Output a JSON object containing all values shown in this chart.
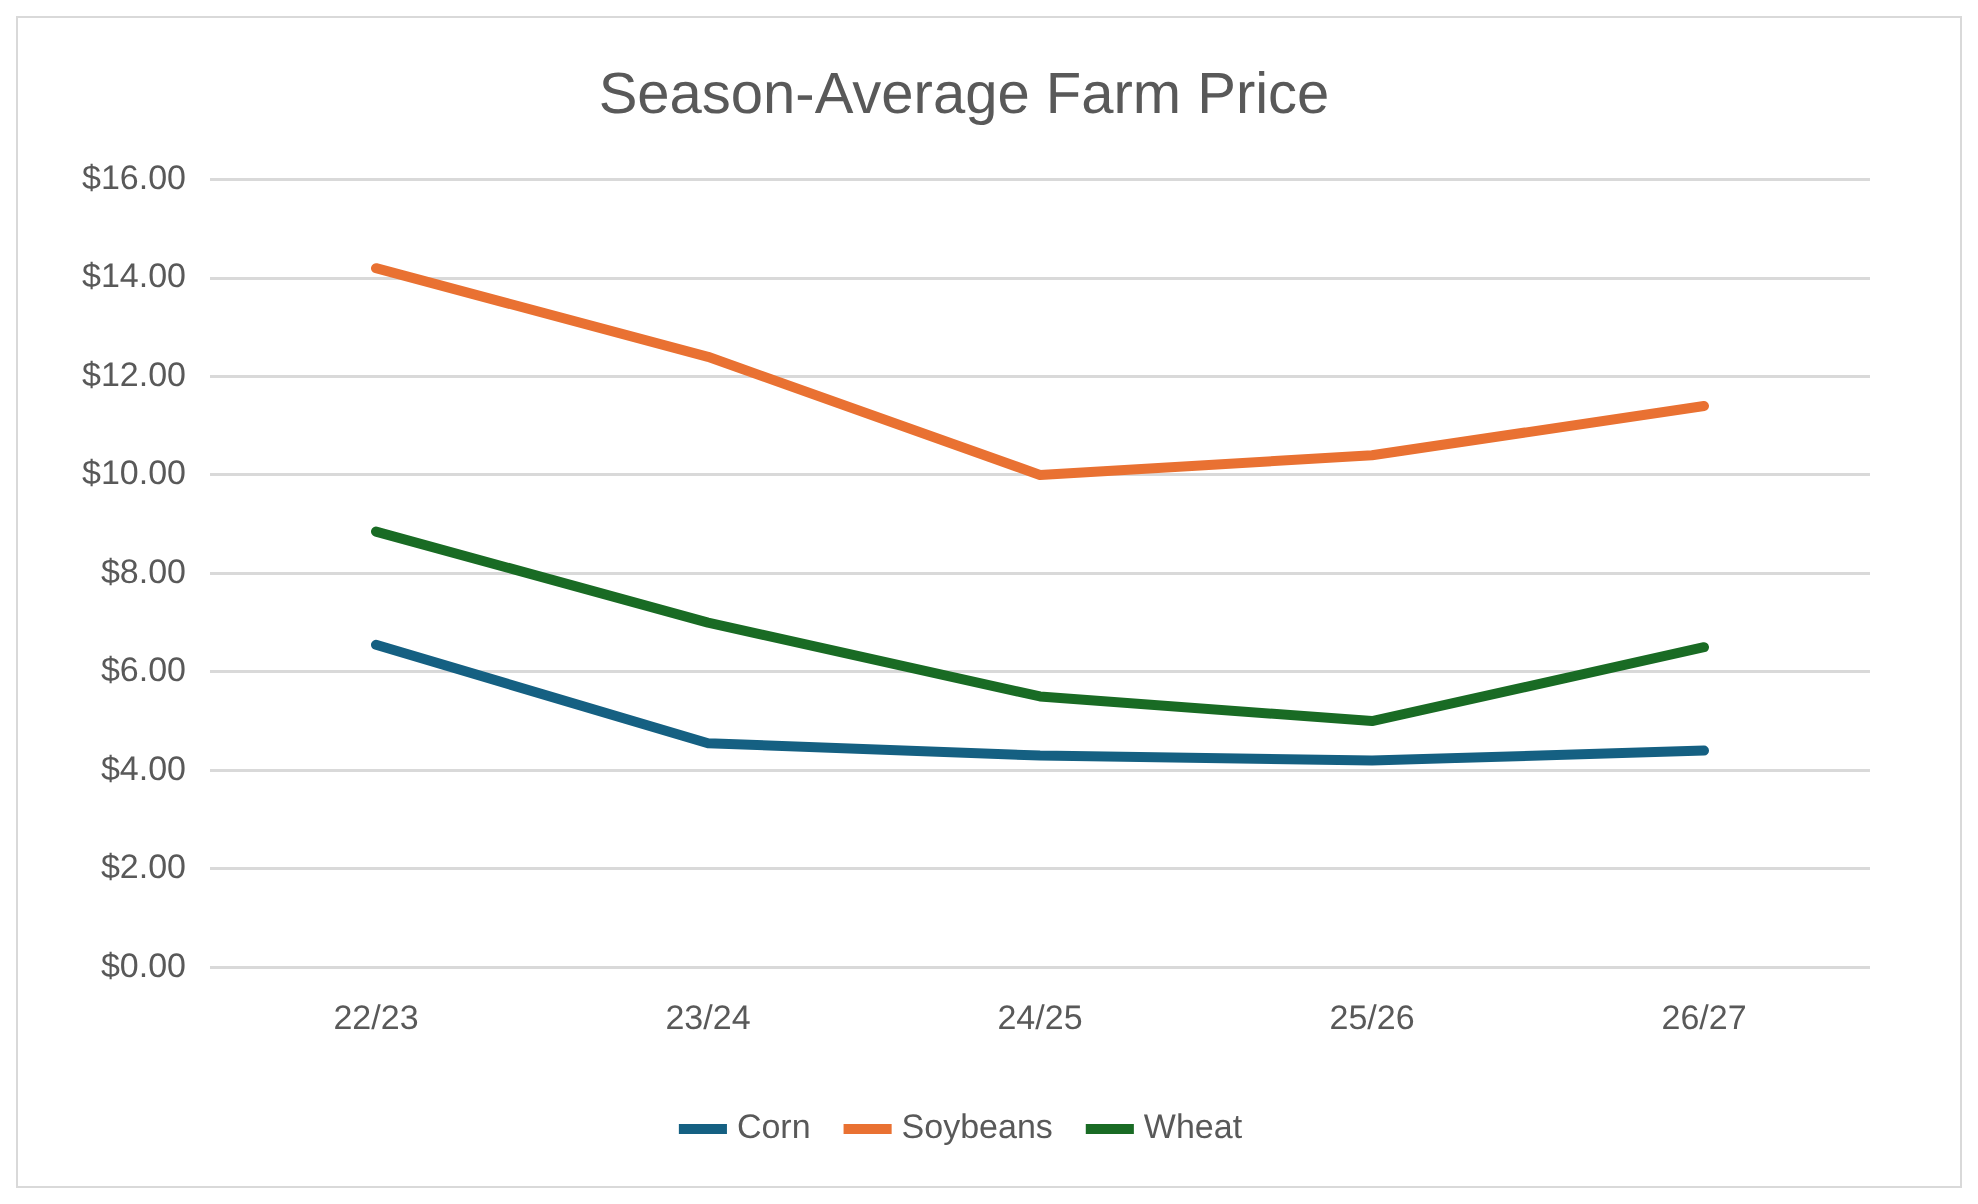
{
  "chart_data": {
    "type": "line",
    "title": "Season-Average Farm Price",
    "categories": [
      "22/23",
      "23/24",
      "24/25",
      "25/26",
      "26/27"
    ],
    "series": [
      {
        "name": "Corn",
        "color": "#156082",
        "values": [
          6.55,
          4.55,
          4.3,
          4.2,
          4.4
        ]
      },
      {
        "name": "Soybeans",
        "color": "#e97132",
        "values": [
          14.2,
          12.4,
          10.0,
          10.4,
          11.4
        ]
      },
      {
        "name": "Wheat",
        "color": "#196b24",
        "values": [
          8.85,
          7.0,
          5.5,
          5.0,
          6.5
        ]
      }
    ],
    "ylim": [
      0,
      16
    ],
    "yticks": [
      {
        "value": 0,
        "label": "$0.00"
      },
      {
        "value": 2,
        "label": "$2.00"
      },
      {
        "value": 4,
        "label": "$4.00"
      },
      {
        "value": 6,
        "label": "$6.00"
      },
      {
        "value": 8,
        "label": "$8.00"
      },
      {
        "value": 10,
        "label": "$10.00"
      },
      {
        "value": 12,
        "label": "$12.00"
      },
      {
        "value": 14,
        "label": "$14.00"
      },
      {
        "value": 16,
        "label": "$16.00"
      }
    ],
    "grid": "y",
    "legend": "bottom",
    "marker": "none",
    "line_style": "solid"
  }
}
